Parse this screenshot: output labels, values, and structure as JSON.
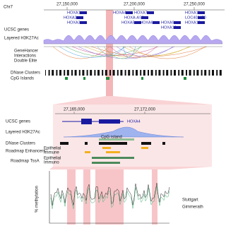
{
  "top_panel": {
    "chromosome": "Chr7",
    "ticks": [
      "27,150,000",
      "27,200,000",
      "27,250,000"
    ],
    "tracks": {
      "ucsc_genes": "UCSC genes",
      "h3k27ac": "Layered H3K27Ac",
      "genehancer": [
        "GeneHancer",
        "Interactions",
        "Double Elite"
      ],
      "dnase": "DNase Clusters",
      "cpg": "CpG Islands"
    },
    "genes": [
      "HOXA1",
      "HOXA2",
      "HOXA3",
      "HOXA4",
      "HOXA-AS3",
      "HOXA5",
      "HOXA6",
      "HOXA7",
      "HOXA9",
      "HOXA10",
      "HOXA11",
      "LOC402470",
      "HOXA13"
    ]
  },
  "zoom_panel": {
    "ticks": [
      "27,165,000",
      "27,172,000"
    ],
    "tracks": {
      "ucsc_genes": "UCSC genes",
      "h3k27ac": "Layered H3K27Ac",
      "dnase": "DNase Clusters",
      "enhancers": "Roadmap Enhancers",
      "tssa": "Roadmap TssA"
    },
    "gene": "HOXA4",
    "cpg_island": "CpG island",
    "enhancer_types": [
      "Epithelial",
      "Immune"
    ],
    "tssa_types": [
      "Epithelial",
      "Immuno"
    ]
  },
  "methylation_panel": {
    "y_label": "% methylation",
    "legend": [
      "Stuttgart",
      "Gimmerath"
    ]
  }
}
